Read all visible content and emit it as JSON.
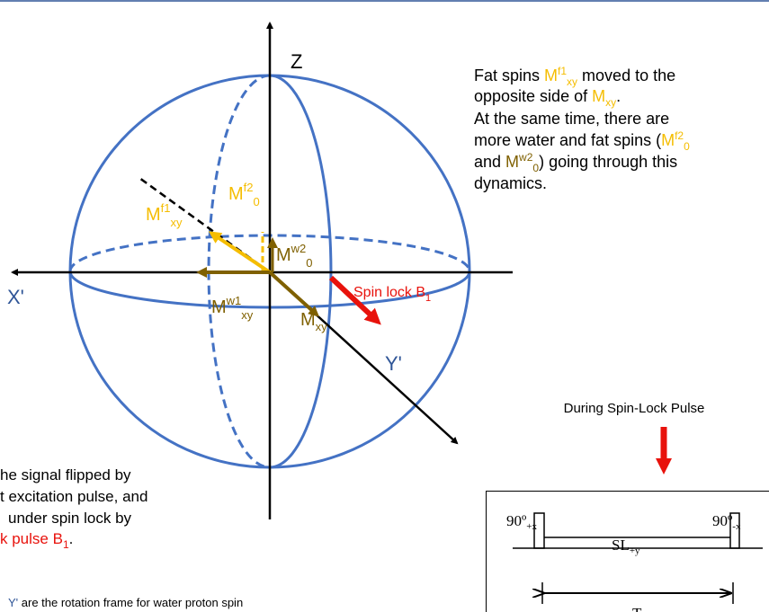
{
  "axes": {
    "z": "Z",
    "x": "X'",
    "y": "Y'"
  },
  "vectors": {
    "fat_xy": {
      "base": "M",
      "sup": "f1",
      "sub": "xy"
    },
    "fat_0": {
      "base": "M",
      "sup": "f2",
      "sub": "0"
    },
    "water_0": {
      "base": "M",
      "sup": "w2",
      "sub": "0"
    },
    "water_xy": {
      "base": "M",
      "sup": "w1",
      "sub": "xy"
    },
    "mxy": {
      "base": "M",
      "sub": "xy"
    },
    "spin_lock": {
      "base": "Spin lock B",
      "sub": "1"
    }
  },
  "note": {
    "lines": [
      [
        "Fat spins ",
        "M",
        "f1",
        "xy",
        " moved  to the"
      ],
      [
        "opposite side of ",
        "M",
        "xy",
        "."
      ],
      [
        "At the same time, there are"
      ],
      [
        "more water and fat spins (",
        "M",
        "f2",
        "0"
      ],
      [
        "and ",
        "M",
        "w2",
        "0",
        ") going through this"
      ],
      [
        "dynamics."
      ]
    ]
  },
  "left_note": {
    "lines": [
      "he signal flipped by",
      "t excitation pulse, and",
      "under spin lock by"
    ],
    "last": [
      "k pulse B",
      "1",
      "."
    ]
  },
  "caption": [
    "Y'",
    " are the rotation frame for water proton spin"
  ],
  "pulse": {
    "title": "During Spin-Lock Pulse",
    "left": [
      "90º",
      "+x"
    ],
    "right": [
      "90º",
      "-x"
    ],
    "middle": [
      "SL",
      "+y"
    ],
    "duration": "T"
  }
}
